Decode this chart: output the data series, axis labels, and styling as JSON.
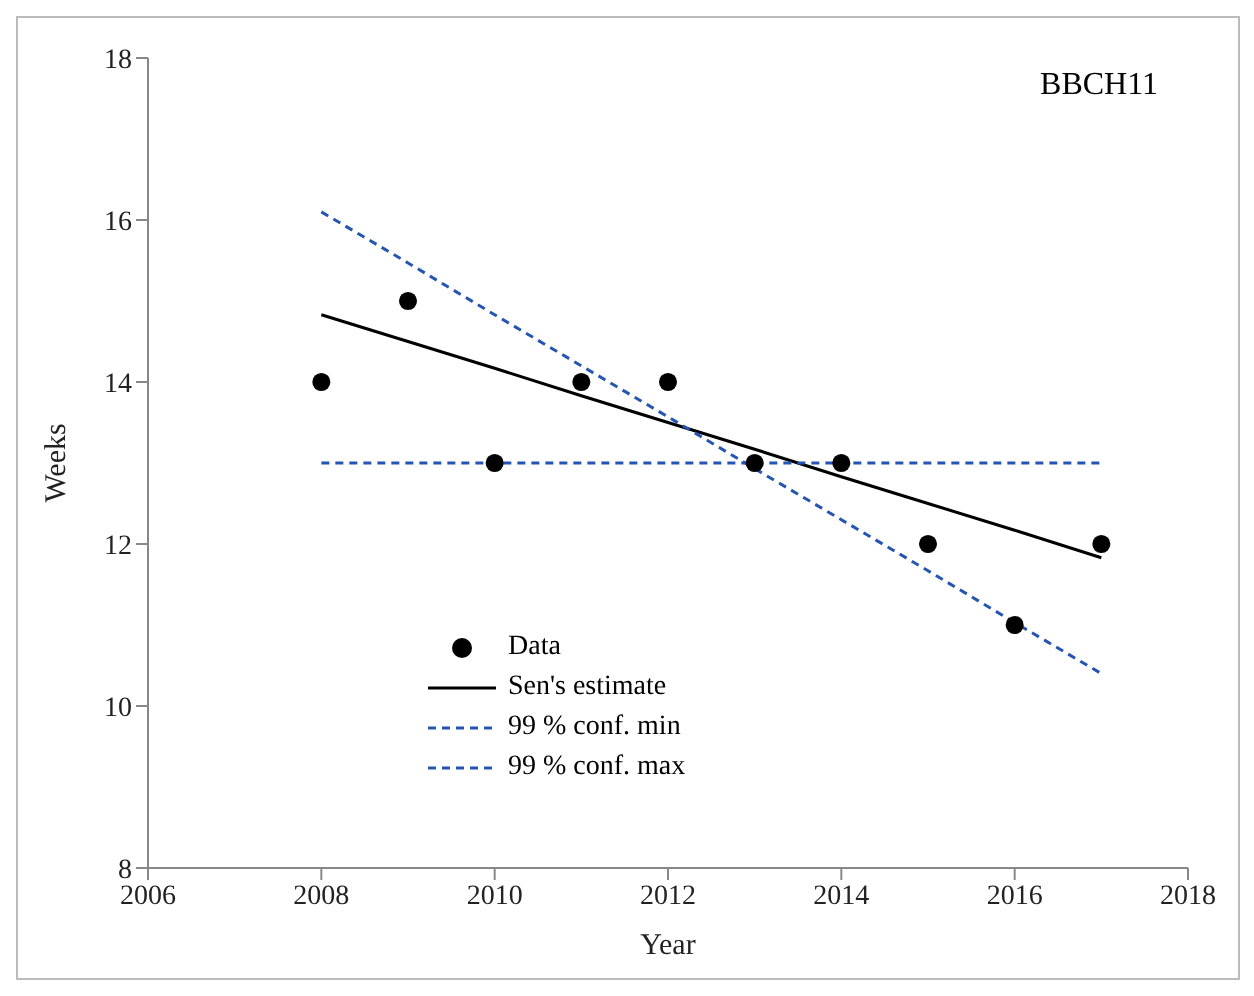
{
  "chart_data": {
    "type": "scatter",
    "xlabel": "Year",
    "ylabel": "Weeks",
    "annotations": [
      "BBCH11"
    ],
    "x": [
      2008,
      2009,
      2010,
      2011,
      2012,
      2013,
      2014,
      2015,
      2016,
      2017
    ],
    "series": [
      {
        "name": "Data",
        "type": "scatter",
        "color": "#000000",
        "marker": "circle",
        "values": [
          14,
          15,
          13,
          14,
          14,
          13,
          13,
          12,
          11,
          12
        ]
      },
      {
        "name": "Sen's estimate",
        "type": "line",
        "color": "#000000",
        "line_style": "solid",
        "values": [
          14.83,
          14.5,
          14.17,
          13.83,
          13.5,
          13.17,
          12.83,
          12.5,
          12.17,
          11.83
        ]
      },
      {
        "name": "99 % conf. min",
        "type": "line",
        "color": "#2455b0",
        "line_style": "dashed",
        "values": [
          16.1,
          15.47,
          14.83,
          14.2,
          13.57,
          12.93,
          12.3,
          11.67,
          11.03,
          10.4
        ]
      },
      {
        "name": "99 % conf. max",
        "type": "line",
        "color": "#2455b0",
        "line_style": "dashed",
        "values": [
          13,
          13,
          13,
          13,
          13,
          13,
          13,
          13,
          13,
          13
        ]
      }
    ],
    "xlim": [
      2006,
      2018
    ],
    "xticks": [
      2006,
      2008,
      2010,
      2012,
      2014,
      2016,
      2018
    ],
    "ylim": [
      8,
      18
    ],
    "yticks": [
      8,
      10,
      12,
      14,
      16,
      18
    ],
    "grid": false,
    "legend": "bottom left"
  }
}
